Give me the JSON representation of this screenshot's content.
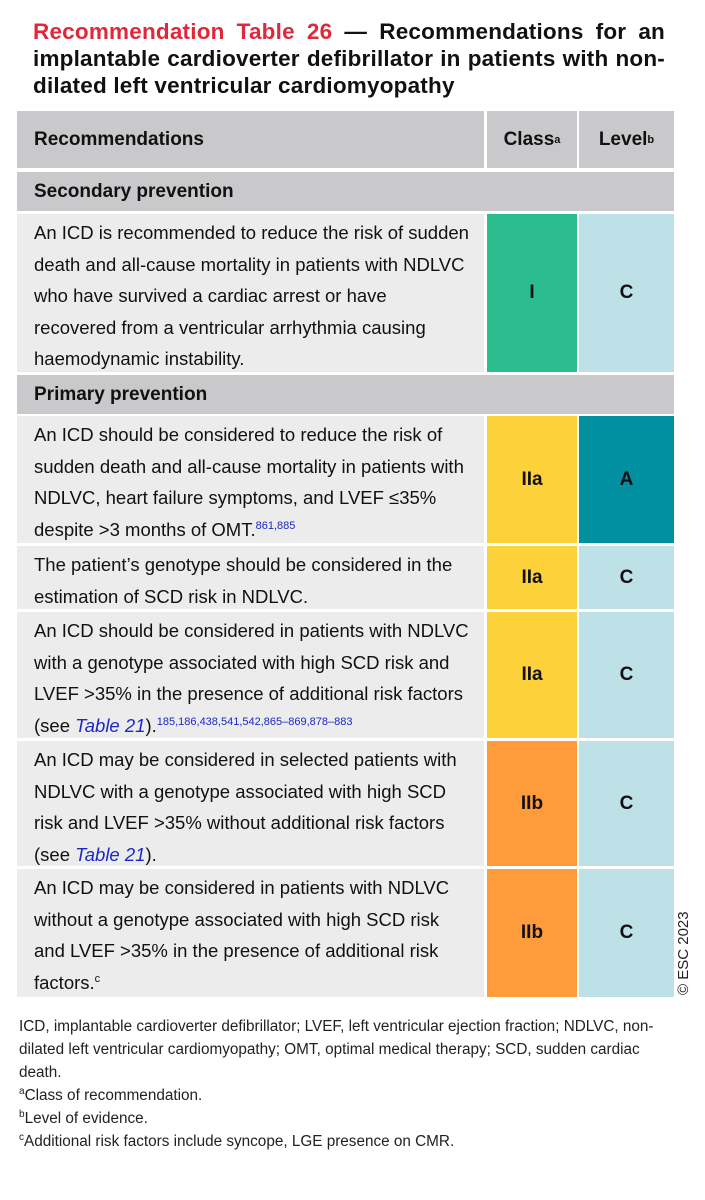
{
  "title": {
    "label": "Recommendation Table 26",
    "text": " — Recommendations for an implantable cardioverter defibrillator in patients with non-dilated left ventricular cardiomyopathy"
  },
  "table": {
    "headers": {
      "recommendations": "Recommendations",
      "class": "Class",
      "class_sup": "a",
      "level": "Level",
      "level_sup": "b"
    },
    "sections": [
      {
        "title": "Secondary prevention"
      },
      {
        "title": "Primary prevention"
      }
    ],
    "rows": [
      {
        "text": "An ICD is recommended to reduce the risk of sudden death and all-cause mortality in patients with NDLVC who have survived a cardiac arrest or have recovered from a ventricular arrhythmia causing haemodynamic instability.",
        "class": "I",
        "level": "C"
      },
      {
        "text": "An ICD should be considered to reduce the risk of sudden death and all-cause mortality in patients with NDLVC, heart failure symptoms, and LVEF ≤35% despite >3 months of OMT.",
        "refs": "861,885",
        "class": "IIa",
        "level": "A"
      },
      {
        "text": "The patient’s genotype should be considered in the estimation of SCD risk in NDLVC.",
        "class": "IIa",
        "level": "C"
      },
      {
        "text": "An ICD should be considered in patients with NDLVC with a genotype associated with high SCD risk and LVEF >35% in the presence of additional risk factors (see ",
        "link": "Table 21",
        "after": ").",
        "refs": "185,186,438,541,542,865–869,878–883",
        "class": "IIa",
        "level": "C"
      },
      {
        "text": "An ICD may be considered in selected patients with NDLVC with a genotype associated with high SCD risk and LVEF >35% without additional risk factors (see ",
        "link": "Table 21",
        "after": ").",
        "class": "IIb",
        "level": "C"
      },
      {
        "text": "An ICD may be considered in patients with NDLVC without a genotype associated with high SCD risk and LVEF >35% in the presence of additional risk factors.",
        "sup": "c",
        "class": "IIb",
        "level": "C"
      }
    ]
  },
  "colors": {
    "class_I": "#2bbd8e",
    "class_IIa": "#fdd13a",
    "class_IIb": "#fe9b3a",
    "level_A": "#00909f",
    "level_C": "#bde1e7",
    "header_bg": "#c9c9cb",
    "row_bg": "#ececec",
    "title_red": "#e0283a",
    "ref_blue": "#1b27c9"
  },
  "copyright": "© ESC 2023",
  "footnotes": {
    "abbrev": "ICD, implantable cardioverter defibrillator; LVEF, left ventricular ejection fraction; NDLVC, non-dilated left ventricular cardiomyopathy; OMT, optimal medical therapy; SCD, sudden cardiac death.",
    "a_mark": "a",
    "a": "Class of recommendation.",
    "b_mark": "b",
    "b": "Level of evidence.",
    "c_mark": "c",
    "c": "Additional risk factors include syncope, LGE presence on CMR."
  }
}
